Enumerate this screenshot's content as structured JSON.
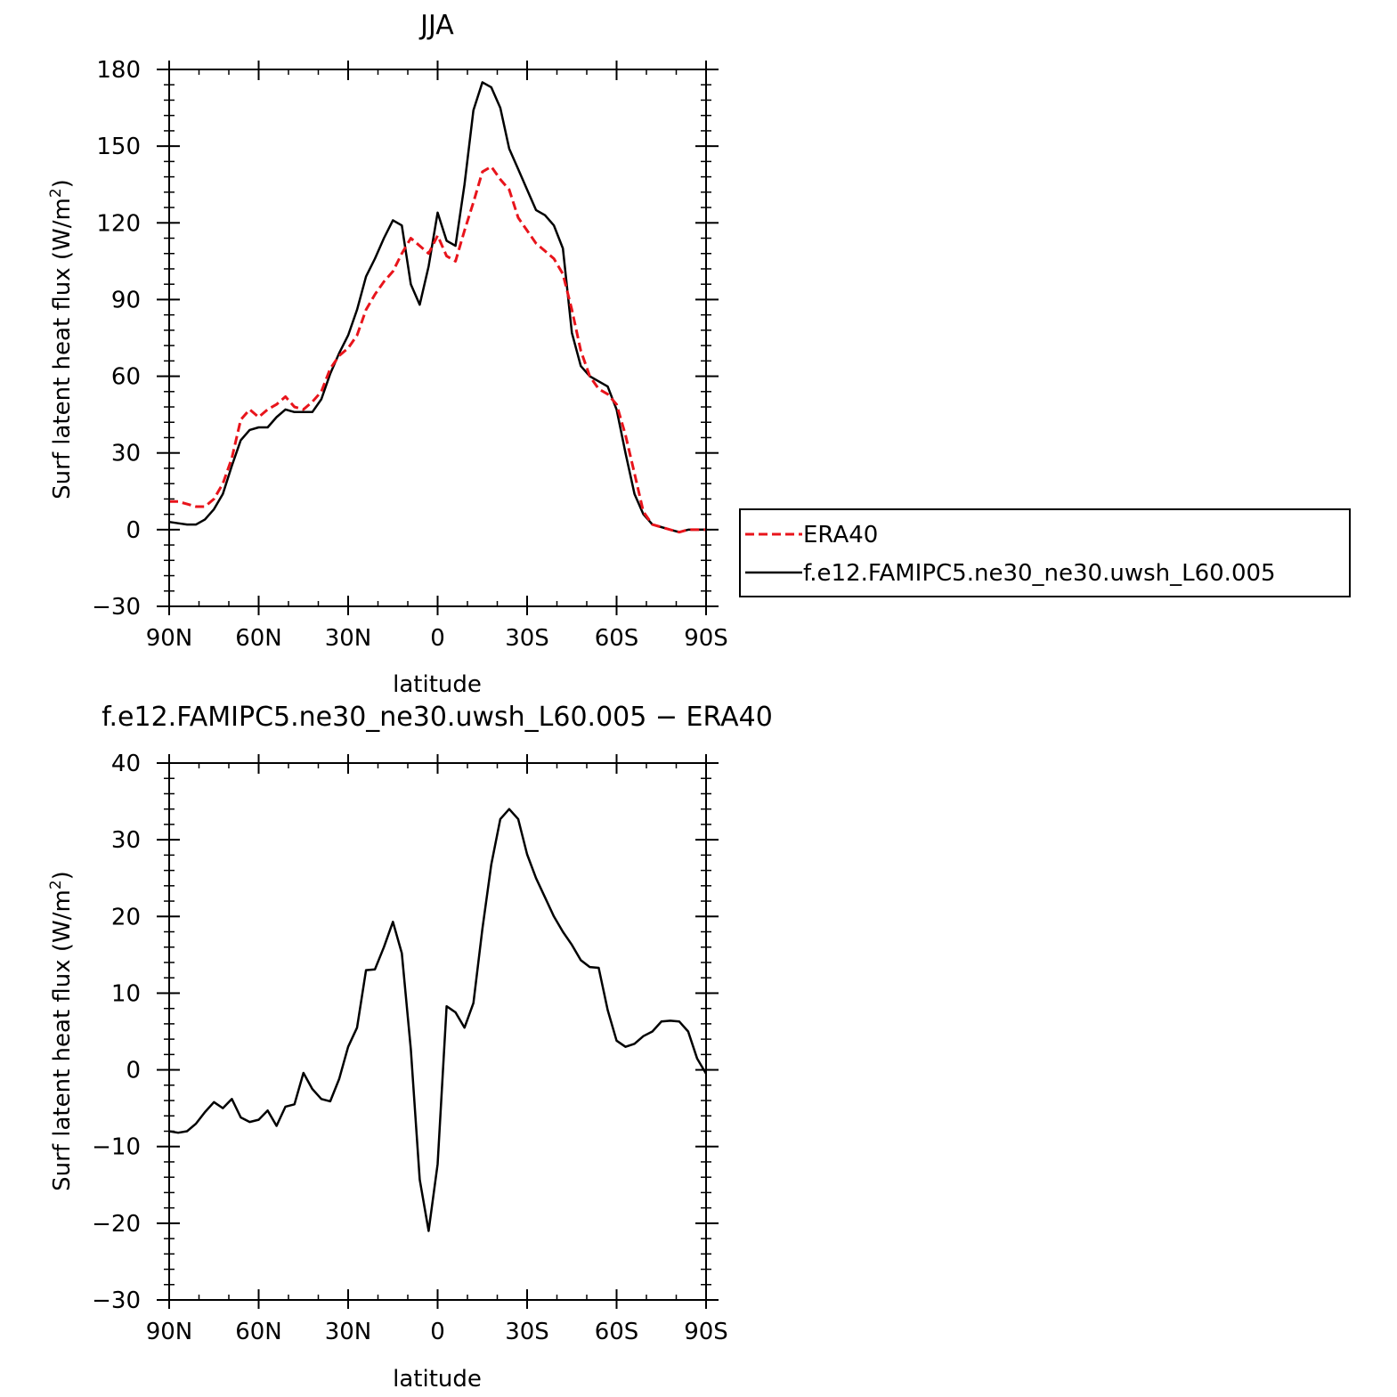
{
  "chart_data": [
    {
      "type": "line",
      "title": "JJA",
      "xlabel": "latitude",
      "ylabel": "Surf latent heat flux (W/m",
      "ylabel_sup": "2",
      "ylabel_close": ")",
      "xlim": [
        90,
        -90
      ],
      "ylim": [
        -30,
        180
      ],
      "xticks": [
        {
          "value": 90,
          "label": "90N"
        },
        {
          "value": 60,
          "label": "60N"
        },
        {
          "value": 30,
          "label": "30N"
        },
        {
          "value": 0,
          "label": "0"
        },
        {
          "value": -30,
          "label": "30S"
        },
        {
          "value": -60,
          "label": "60S"
        },
        {
          "value": -90,
          "label": "90S"
        }
      ],
      "yticks": [
        {
          "value": 180,
          "label": "180"
        },
        {
          "value": 150,
          "label": "150"
        },
        {
          "value": 120,
          "label": "120"
        },
        {
          "value": 90,
          "label": "90"
        },
        {
          "value": 60,
          "label": "60"
        },
        {
          "value": 30,
          "label": "30"
        },
        {
          "value": 0,
          "label": "0"
        },
        {
          "value": -30,
          "label": "−30"
        }
      ],
      "legend": {
        "placement": "right"
      },
      "series": [
        {
          "name": "ERA40",
          "color": "#e8141b",
          "dash": true,
          "x": [
            90,
            87,
            84,
            81,
            78,
            75,
            72,
            69,
            66,
            63,
            60,
            57,
            54,
            51,
            48,
            45,
            42,
            39,
            36,
            33,
            30,
            27,
            24,
            21,
            18,
            15,
            12,
            9,
            6,
            3,
            0,
            -3,
            -6,
            -9,
            -12,
            -15,
            -18,
            -21,
            -24,
            -27,
            -30,
            -33,
            -36,
            -39,
            -42,
            -45,
            -48,
            -51,
            -54,
            -57,
            -60,
            -63,
            -66,
            -69,
            -72,
            -75,
            -78,
            -81,
            -84,
            -87,
            -90
          ],
          "y": [
            11,
            11,
            10,
            9,
            9,
            12,
            18,
            28,
            43,
            47,
            44,
            47,
            49,
            52,
            48,
            47,
            50,
            54,
            63,
            68,
            71,
            76,
            86,
            92,
            97,
            101,
            108,
            114,
            111,
            108,
            115,
            107,
            105,
            117,
            128,
            140,
            142,
            137,
            133,
            122,
            117,
            112,
            109,
            106,
            100,
            86,
            70,
            60,
            55,
            53,
            49,
            37,
            22,
            7,
            2,
            1,
            0,
            -1,
            0,
            0,
            0
          ]
        },
        {
          "name": "f.e12.FAMIPC5.ne30_ne30.uwsh_L60.005",
          "color": "#000000",
          "dash": false,
          "x": [
            90,
            87,
            84,
            81,
            78,
            75,
            72,
            69,
            66,
            63,
            60,
            57,
            54,
            51,
            48,
            45,
            42,
            39,
            36,
            33,
            30,
            27,
            24,
            21,
            18,
            15,
            12,
            9,
            6,
            3,
            0,
            -3,
            -6,
            -9,
            -12,
            -15,
            -18,
            -21,
            -24,
            -27,
            -30,
            -33,
            -36,
            -39,
            -42,
            -45,
            -48,
            -51,
            -54,
            -57,
            -60,
            -63,
            -66,
            -69,
            -72,
            -75,
            -78,
            -81,
            -84,
            -87,
            -90
          ],
          "y": [
            3,
            2.5,
            2,
            2,
            4,
            8,
            14,
            25,
            35,
            39,
            40,
            40,
            44,
            47,
            46,
            46,
            46,
            51,
            61,
            69,
            76,
            86,
            99,
            106,
            114,
            121,
            119,
            96,
            88,
            103,
            124,
            113,
            111,
            135,
            164,
            175,
            173,
            165,
            149,
            141,
            133,
            125,
            123,
            119,
            110,
            77,
            64,
            60,
            58,
            56,
            47,
            30,
            14,
            6,
            2,
            1,
            0,
            -1,
            0,
            0,
            0
          ]
        }
      ]
    },
    {
      "type": "line",
      "title": "f.e12.FAMIPC5.ne30_ne30.uwsh_L60.005 − ERA40",
      "xlabel": "latitude",
      "ylabel": "Surf latent heat flux (W/m",
      "ylabel_sup": "2",
      "ylabel_close": ")",
      "xlim": [
        90,
        -90
      ],
      "ylim": [
        -30,
        40
      ],
      "xticks": [
        {
          "value": 90,
          "label": "90N"
        },
        {
          "value": 60,
          "label": "60N"
        },
        {
          "value": 30,
          "label": "30N"
        },
        {
          "value": 0,
          "label": "0"
        },
        {
          "value": -30,
          "label": "30S"
        },
        {
          "value": -60,
          "label": "60S"
        },
        {
          "value": -90,
          "label": "90S"
        }
      ],
      "yticks": [
        {
          "value": 40,
          "label": "40"
        },
        {
          "value": 30,
          "label": "30"
        },
        {
          "value": 20,
          "label": "20"
        },
        {
          "value": 10,
          "label": "10"
        },
        {
          "value": 0,
          "label": "0"
        },
        {
          "value": -10,
          "label": "−10"
        },
        {
          "value": -20,
          "label": "−20"
        },
        {
          "value": -30,
          "label": "−30"
        }
      ],
      "series": [
        {
          "color": "#000000",
          "dash": false,
          "x": [
            90,
            87,
            84,
            81,
            78,
            75,
            72,
            69,
            66,
            63,
            60,
            57,
            54,
            51,
            48,
            45,
            42,
            39,
            36,
            33,
            30,
            27,
            24,
            21,
            18,
            15,
            12,
            9,
            6,
            3,
            0,
            -3,
            -6,
            -9,
            -12,
            -15,
            -18,
            -21,
            -24,
            -27,
            -30,
            -33,
            -36,
            -39,
            -42,
            -45,
            -48,
            -51,
            -54,
            -57,
            -60,
            -63,
            -66,
            -69,
            -72,
            -75,
            -78,
            -81,
            -84,
            -87,
            -90
          ],
          "y": [
            -8,
            -8.2,
            -8,
            -7,
            -5.5,
            -4.2,
            -5,
            -3.8,
            -6.2,
            -6.8,
            -6.5,
            -5.3,
            -7.3,
            -4.8,
            -4.5,
            -0.4,
            -2.5,
            -3.8,
            -4.1,
            -1.2,
            3,
            5.5,
            13,
            13.1,
            16,
            19.3,
            15.2,
            2.7,
            -14.3,
            -21,
            -12.3,
            8.3,
            7.5,
            5.5,
            8.7,
            18.4,
            26.8,
            32.7,
            34,
            32.7,
            28.1,
            25,
            22.5,
            20,
            18,
            16.3,
            14.3,
            13.4,
            13.3,
            7.8,
            3.8,
            3,
            3.4,
            4.4,
            5,
            6.3,
            6.4,
            6.3,
            5,
            1.5,
            -0.5
          ]
        }
      ]
    }
  ]
}
